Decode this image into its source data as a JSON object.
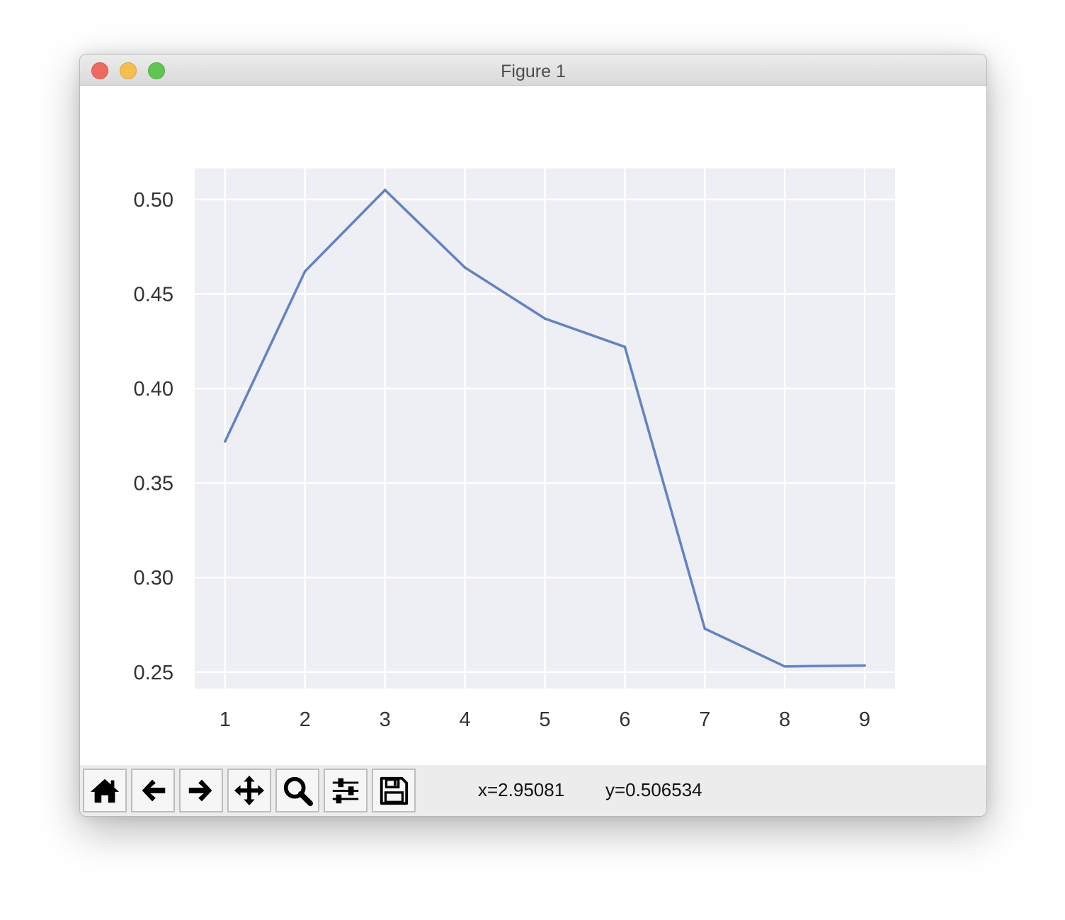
{
  "window": {
    "title": "Figure 1"
  },
  "toolbar": {
    "buttons": [
      {
        "name": "home-button",
        "icon": "home-icon"
      },
      {
        "name": "back-button",
        "icon": "arrow-left-icon"
      },
      {
        "name": "forward-button",
        "icon": "arrow-right-icon"
      },
      {
        "name": "pan-button",
        "icon": "move-icon"
      },
      {
        "name": "zoom-button",
        "icon": "magnifier-icon"
      },
      {
        "name": "configure-subplots-button",
        "icon": "sliders-icon"
      },
      {
        "name": "save-button",
        "icon": "floppy-disk-icon"
      }
    ],
    "coords": {
      "x": "x=2.95081",
      "y": "y=0.506534"
    }
  },
  "colors": {
    "line": "#6283bf",
    "plot_bg": "#eeeef5",
    "grid": "#ffffff",
    "tick_text": "#333333"
  },
  "chart_data": {
    "type": "line",
    "title": "",
    "xlabel": "",
    "ylabel": "",
    "x": [
      1,
      2,
      3,
      4,
      5,
      6,
      7,
      8,
      9
    ],
    "series": [
      {
        "values": [
          0.372,
          0.462,
          0.505,
          0.464,
          0.437,
          0.422,
          0.273,
          0.253,
          0.2535
        ]
      }
    ],
    "xticks": [
      "1",
      "2",
      "3",
      "4",
      "5",
      "6",
      "7",
      "8",
      "9"
    ],
    "yticks": [
      "0.25",
      "0.30",
      "0.35",
      "0.40",
      "0.45",
      "0.50"
    ],
    "xlim": [
      0.62,
      9.38
    ],
    "ylim": [
      0.2413,
      0.5164
    ],
    "grid": true,
    "legend": "none"
  }
}
